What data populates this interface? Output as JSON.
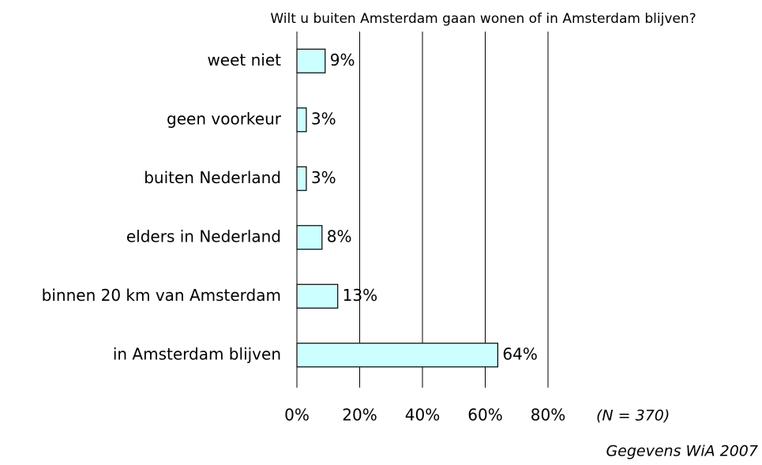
{
  "chart_data": {
    "type": "bar",
    "orientation": "horizontal",
    "title": "Wilt u buiten Amsterdam gaan wonen of in Amsterdam blijven?",
    "categories": [
      "weet niet",
      "geen voorkeur",
      "buiten Nederland",
      "elders in Nederland",
      "binnen 20 km van Amsterdam",
      "in Amsterdam blijven"
    ],
    "values": [
      9,
      3,
      3,
      8,
      13,
      64
    ],
    "value_labels": [
      "9%",
      "3%",
      "3%",
      "8%",
      "13%",
      "64%"
    ],
    "color": "#ccffff",
    "xlim": [
      0,
      80
    ],
    "xticks": [
      {
        "value": 0,
        "label": "0%"
      },
      {
        "value": 20,
        "label": "20%"
      },
      {
        "value": 40,
        "label": "40%"
      },
      {
        "value": 60,
        "label": "60%"
      },
      {
        "value": 80,
        "label": "80%"
      }
    ],
    "grid": true,
    "annotation": "(N = 370)",
    "source": "Gegevens WiA 2007"
  }
}
